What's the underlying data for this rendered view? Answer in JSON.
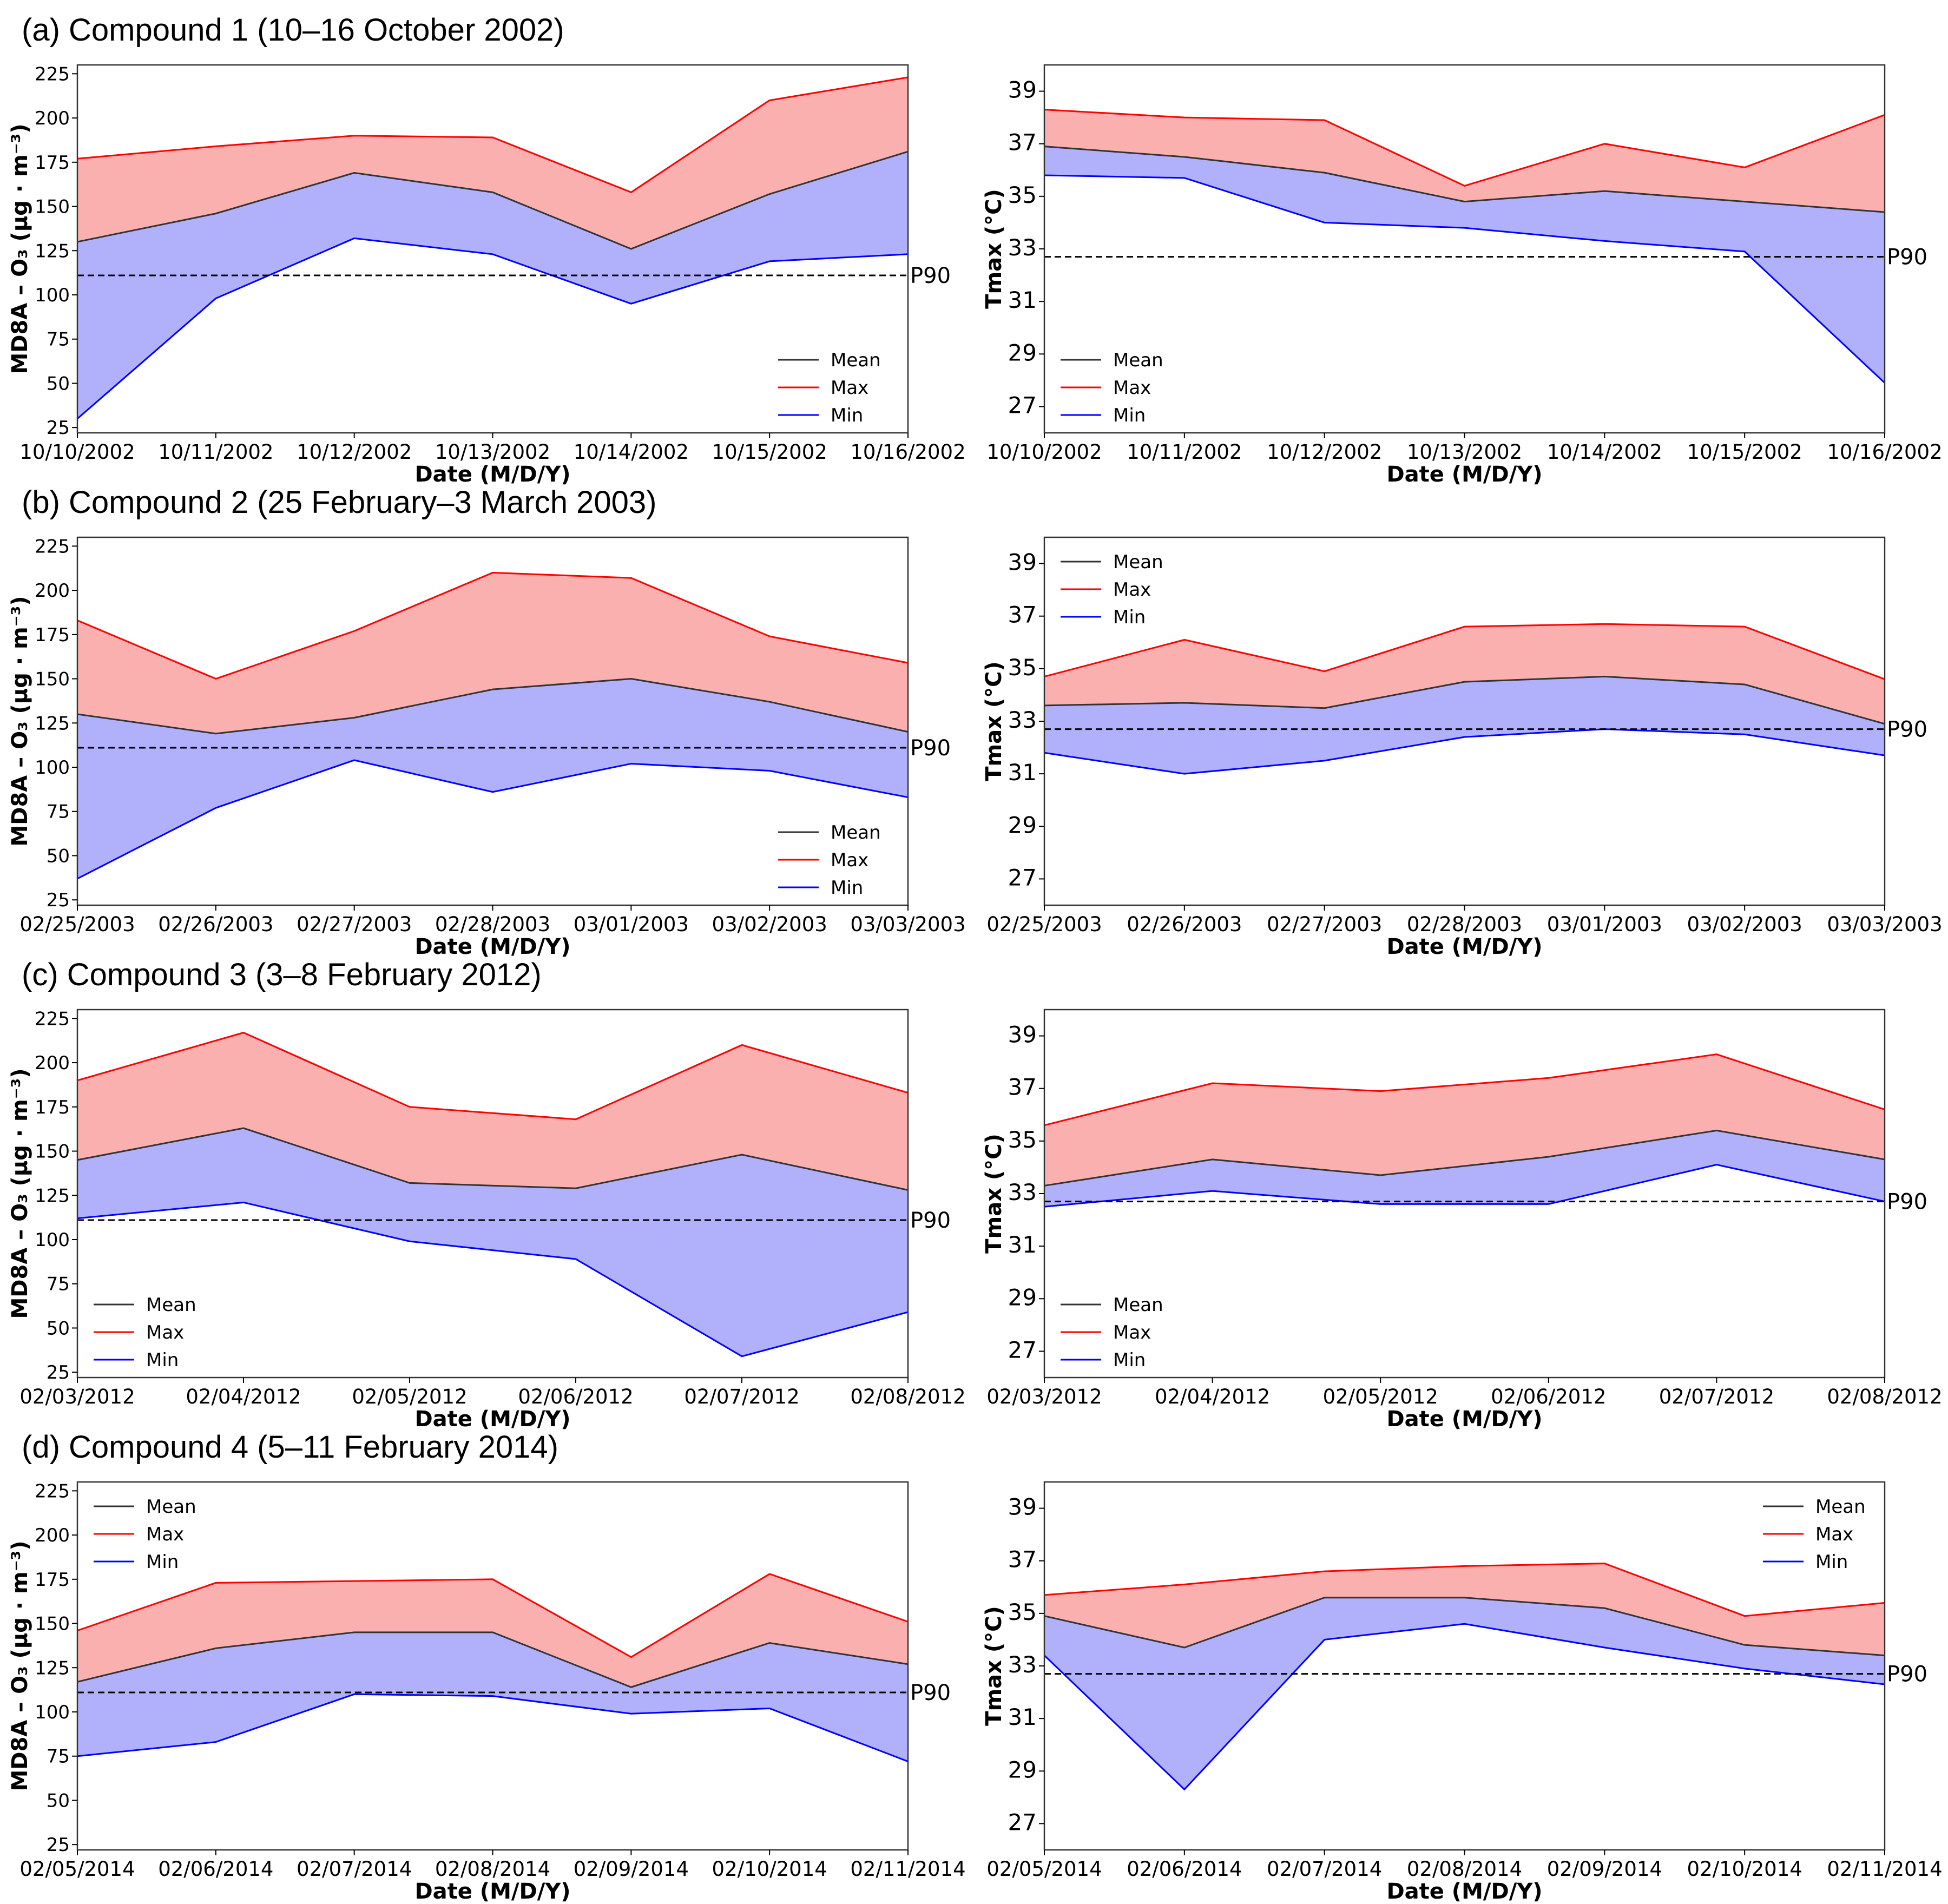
{
  "colors": {
    "mean": "#333333",
    "max": "#ff0000",
    "min": "#0000ff",
    "upper_fill": "#fbb0b0",
    "lower_fill": "#b0b0fb",
    "p90_line": "#000000"
  },
  "legend_labels": [
    "Mean",
    "Max",
    "Min"
  ],
  "p90_label": "P90",
  "xlabel": "Date (M/D/Y)",
  "ylabel_o3": "MD8A – O₃ (μg · m⁻³)",
  "ylabel_t": "Tmax (°C)",
  "rows": [
    {
      "title": "(a) Compound 1 (10–16 October 2002)"
    },
    {
      "title": "(b) Compound 2 (25 February–3 March 2003)"
    },
    {
      "title": "(c) Compound 3 (3–8 February 2012)"
    },
    {
      "title": "(d) Compound 4 (5–11 February 2014)"
    }
  ],
  "chart_data": [
    {
      "type": "area",
      "row": 0,
      "variable": "O3",
      "x": [
        "10/10/2002",
        "10/11/2002",
        "10/12/2002",
        "10/13/2002",
        "10/14/2002",
        "10/15/2002",
        "10/16/2002"
      ],
      "series": [
        {
          "name": "Mean",
          "values": [
            130,
            146,
            169,
            158,
            126,
            157,
            181
          ]
        },
        {
          "name": "Max",
          "values": [
            177,
            184,
            190,
            189,
            158,
            210,
            223
          ]
        },
        {
          "name": "Min",
          "values": [
            30,
            98,
            132,
            123,
            95,
            119,
            123
          ]
        }
      ],
      "p90": 111,
      "ylim": [
        22,
        230
      ],
      "yticks": [
        25,
        50,
        75,
        100,
        125,
        150,
        175,
        200,
        225
      ],
      "xlabel": "Date (M/D/Y)",
      "ylabel": "MD8A – O₃ (μg · m⁻³)",
      "legend": "lower-right"
    },
    {
      "type": "area",
      "row": 0,
      "variable": "Tmax",
      "x": [
        "10/10/2002",
        "10/11/2002",
        "10/12/2002",
        "10/13/2002",
        "10/14/2002",
        "10/15/2002",
        "10/16/2002"
      ],
      "series": [
        {
          "name": "Mean",
          "values": [
            36.9,
            36.5,
            35.9,
            34.8,
            35.2,
            34.8,
            34.4
          ]
        },
        {
          "name": "Max",
          "values": [
            38.3,
            38.0,
            37.9,
            35.4,
            37.0,
            36.1,
            38.1
          ]
        },
        {
          "name": "Min",
          "values": [
            35.8,
            35.7,
            34.0,
            33.8,
            33.3,
            32.9,
            27.9
          ]
        }
      ],
      "p90": 32.7,
      "ylim": [
        26,
        40
      ],
      "yticks": [
        27,
        29,
        31,
        33,
        35,
        37,
        39
      ],
      "xlabel": "Date (M/D/Y)",
      "ylabel": "Tmax (°C)",
      "legend": "lower-left"
    },
    {
      "type": "area",
      "row": 1,
      "variable": "O3",
      "x": [
        "02/25/2003",
        "02/26/2003",
        "02/27/2003",
        "02/28/2003",
        "03/01/2003",
        "03/02/2003",
        "03/03/2003"
      ],
      "series": [
        {
          "name": "Mean",
          "values": [
            130,
            119,
            128,
            144,
            150,
            137,
            120
          ]
        },
        {
          "name": "Max",
          "values": [
            183,
            150,
            177,
            210,
            207,
            174,
            159
          ]
        },
        {
          "name": "Min",
          "values": [
            37,
            77,
            104,
            86,
            102,
            98,
            83
          ]
        }
      ],
      "p90": 111,
      "ylim": [
        22,
        230
      ],
      "yticks": [
        25,
        50,
        75,
        100,
        125,
        150,
        175,
        200,
        225
      ],
      "xlabel": "Date (M/D/Y)",
      "ylabel": "MD8A – O₃ (μg · m⁻³)",
      "legend": "lower-right"
    },
    {
      "type": "area",
      "row": 1,
      "variable": "Tmax",
      "x": [
        "02/25/2003",
        "02/26/2003",
        "02/27/2003",
        "02/28/2003",
        "03/01/2003",
        "03/02/2003",
        "03/03/2003"
      ],
      "series": [
        {
          "name": "Mean",
          "values": [
            33.6,
            33.7,
            33.5,
            34.5,
            34.7,
            34.4,
            32.9
          ]
        },
        {
          "name": "Max",
          "values": [
            34.7,
            36.1,
            34.9,
            36.6,
            36.7,
            36.6,
            34.6
          ]
        },
        {
          "name": "Min",
          "values": [
            31.8,
            31.0,
            31.5,
            32.4,
            32.7,
            32.5,
            31.7
          ]
        }
      ],
      "p90": 32.7,
      "ylim": [
        26,
        40
      ],
      "yticks": [
        27,
        29,
        31,
        33,
        35,
        37,
        39
      ],
      "xlabel": "Date (M/D/Y)",
      "ylabel": "Tmax (°C)",
      "legend": "upper-left"
    },
    {
      "type": "area",
      "row": 2,
      "variable": "O3",
      "x": [
        "02/03/2012",
        "02/04/2012",
        "02/05/2012",
        "02/06/2012",
        "02/07/2012",
        "02/08/2012"
      ],
      "series": [
        {
          "name": "Mean",
          "values": [
            145,
            163,
            132,
            129,
            148,
            128
          ]
        },
        {
          "name": "Max",
          "values": [
            190,
            217,
            175,
            168,
            210,
            183
          ]
        },
        {
          "name": "Min",
          "values": [
            112,
            121,
            99,
            89,
            34,
            59
          ]
        }
      ],
      "p90": 111,
      "ylim": [
        22,
        230
      ],
      "yticks": [
        25,
        50,
        75,
        100,
        125,
        150,
        175,
        200,
        225
      ],
      "xlabel": "Date (M/D/Y)",
      "ylabel": "MD8A – O₃ (μg · m⁻³)",
      "legend": "lower-left"
    },
    {
      "type": "area",
      "row": 2,
      "variable": "Tmax",
      "x": [
        "02/03/2012",
        "02/04/2012",
        "02/05/2012",
        "02/06/2012",
        "02/07/2012",
        "02/08/2012"
      ],
      "series": [
        {
          "name": "Mean",
          "values": [
            33.3,
            34.3,
            33.7,
            34.4,
            35.4,
            34.3
          ]
        },
        {
          "name": "Max",
          "values": [
            35.6,
            37.2,
            36.9,
            37.4,
            38.3,
            36.2
          ]
        },
        {
          "name": "Min",
          "values": [
            32.5,
            33.1,
            32.6,
            32.6,
            34.1,
            32.7
          ]
        }
      ],
      "p90": 32.7,
      "ylim": [
        26,
        40
      ],
      "yticks": [
        27,
        29,
        31,
        33,
        35,
        37,
        39
      ],
      "xlabel": "Date (M/D/Y)",
      "ylabel": "Tmax (°C)",
      "legend": "lower-left"
    },
    {
      "type": "area",
      "row": 3,
      "variable": "O3",
      "x": [
        "02/05/2014",
        "02/06/2014",
        "02/07/2014",
        "02/08/2014",
        "02/09/2014",
        "02/10/2014",
        "02/11/2014"
      ],
      "series": [
        {
          "name": "Mean",
          "values": [
            117,
            136,
            145,
            145,
            114,
            139,
            127
          ]
        },
        {
          "name": "Max",
          "values": [
            146,
            173,
            174,
            175,
            131,
            178,
            151
          ]
        },
        {
          "name": "Min",
          "values": [
            75,
            83,
            110,
            109,
            99,
            102,
            72
          ]
        }
      ],
      "p90": 111,
      "ylim": [
        22,
        230
      ],
      "yticks": [
        25,
        50,
        75,
        100,
        125,
        150,
        175,
        200,
        225
      ],
      "xlabel": "Date (M/D/Y)",
      "ylabel": "MD8A – O₃ (μg · m⁻³)",
      "legend": "upper-left"
    },
    {
      "type": "area",
      "row": 3,
      "variable": "Tmax",
      "x": [
        "02/05/2014",
        "02/06/2014",
        "02/07/2014",
        "02/08/2014",
        "02/09/2014",
        "02/10/2014",
        "02/11/2014"
      ],
      "series": [
        {
          "name": "Mean",
          "values": [
            34.9,
            33.7,
            35.6,
            35.6,
            35.2,
            33.8,
            33.4
          ]
        },
        {
          "name": "Max",
          "values": [
            35.7,
            36.1,
            36.6,
            36.8,
            36.9,
            34.9,
            35.4
          ]
        },
        {
          "name": "Min",
          "values": [
            33.4,
            28.3,
            34.0,
            34.6,
            33.7,
            32.9,
            32.3
          ]
        }
      ],
      "p90": 32.7,
      "ylim": [
        26,
        40
      ],
      "yticks": [
        27,
        29,
        31,
        33,
        35,
        37,
        39
      ],
      "xlabel": "Date (M/D/Y)",
      "ylabel": "Tmax (°C)",
      "legend": "upper-right"
    }
  ]
}
